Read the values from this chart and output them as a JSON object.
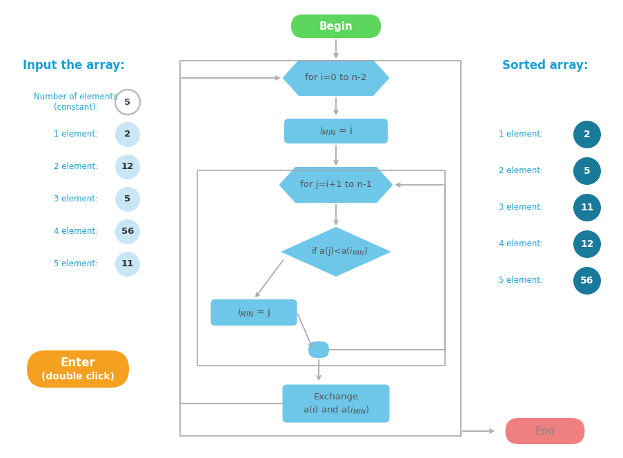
{
  "bg_color": "#ffffff",
  "input_label": "Input the array:",
  "sorted_label": "Sorted array:",
  "input_elements": [
    {
      "label": "Number of elements\n(constant):",
      "value": "5",
      "outline_only": true,
      "circle_color": "#cccccc",
      "text_color": "#444444"
    },
    {
      "label": "1 element:",
      "value": "2",
      "circle_color": "#c8e6f5",
      "text_color": "#333333"
    },
    {
      "label": "2 element:",
      "value": "12",
      "circle_color": "#c8e6f5",
      "text_color": "#333333"
    },
    {
      "label": "3 element:",
      "value": "5",
      "circle_color": "#c8e6f5",
      "text_color": "#333333"
    },
    {
      "label": "4 element:",
      "value": "56",
      "circle_color": "#c8e6f5",
      "text_color": "#333333"
    },
    {
      "label": "5 element:",
      "value": "11",
      "circle_color": "#c8e6f5",
      "text_color": "#333333"
    }
  ],
  "sorted_elements": [
    {
      "label": "1 element:",
      "value": "2",
      "circle_color": "#1a7a9a",
      "text_color": "#ffffff"
    },
    {
      "label": "2 element:",
      "value": "5",
      "circle_color": "#1a7a9a",
      "text_color": "#ffffff"
    },
    {
      "label": "3 element:",
      "value": "11",
      "circle_color": "#1a7a9a",
      "text_color": "#ffffff"
    },
    {
      "label": "4 element:",
      "value": "12",
      "circle_color": "#1a7a9a",
      "text_color": "#ffffff"
    },
    {
      "label": "5 element:",
      "value": "56",
      "circle_color": "#1a7a9a",
      "text_color": "#ffffff"
    }
  ],
  "flow_color": "#6ec6e8",
  "arrow_color": "#aaaaaa",
  "begin_color": "#5cd65c",
  "end_color": "#f08080",
  "enter_bg": "#f5a020",
  "enter_text": "#ffffff",
  "label_color": "#1a9fd4",
  "box_color": "#aaaaaa",
  "text_dark": "#555555"
}
